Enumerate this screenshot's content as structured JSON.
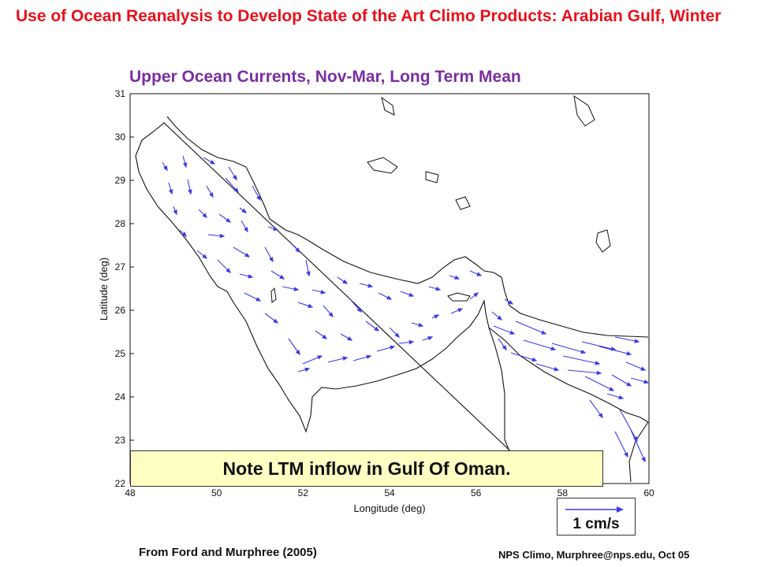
{
  "slide": {
    "title": "Use of Ocean Reanalysis to Develop State of the Art Climo Products: Arabian Gulf, Winter",
    "subtitle": "Upper Ocean Currents, Nov-Mar, Long Term Mean",
    "note": "Note LTM inflow in Gulf Of Oman.",
    "scale_label": "1 cm/s",
    "source": "From Ford and Murphree (2005)",
    "credit": "NPS Climo, Murphree@nps.edu, Oct 05"
  },
  "map": {
    "xlabel": "Longitude (deg)",
    "ylabel": "Latitude (deg)",
    "x_ticks": [
      "48",
      "50",
      "52",
      "54",
      "56",
      "58",
      "60"
    ],
    "y_ticks": [
      "31",
      "30",
      "29",
      "28",
      "27",
      "26",
      "25",
      "24",
      "23",
      "22"
    ],
    "xlim": [
      48,
      60
    ],
    "ylim": [
      22,
      31
    ],
    "coast_color": "#111111",
    "arrow_color": "#3a3ae8"
  }
}
